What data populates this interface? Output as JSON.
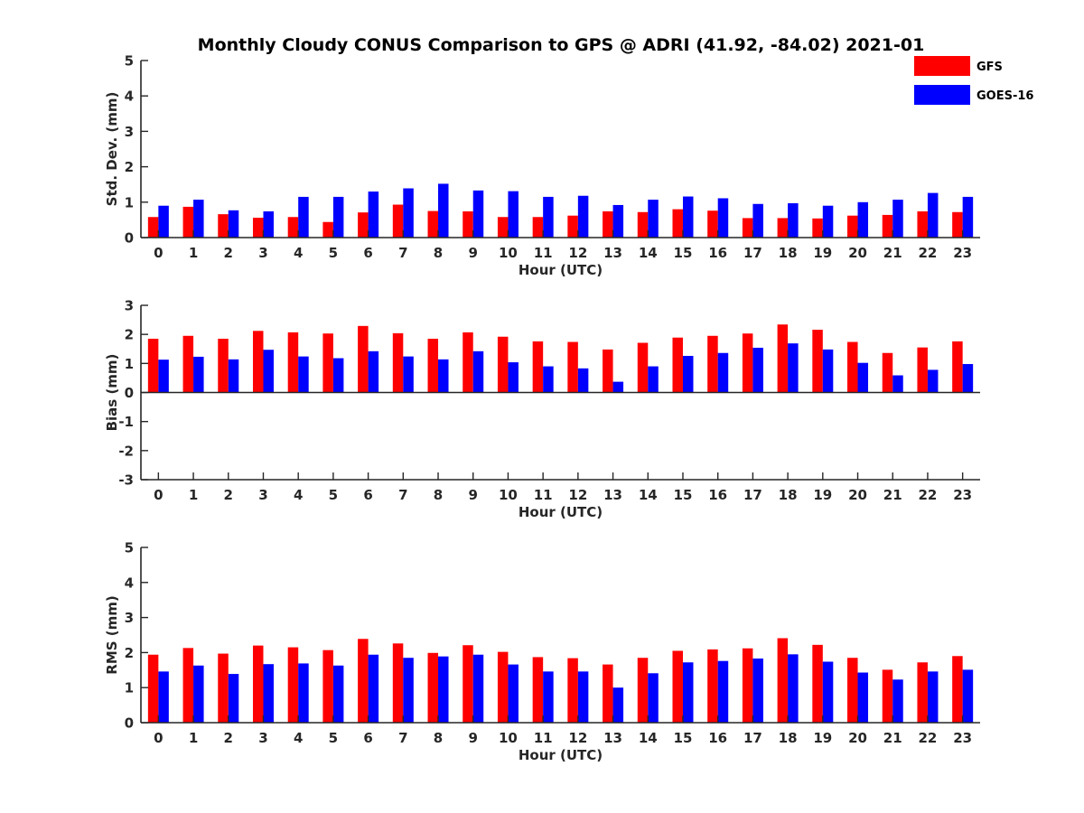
{
  "title": "Monthly Cloudy CONUS Comparison to GPS @ ADRI (41.92, -84.02) 2021-01",
  "legend": {
    "placement": "top-right",
    "entries": [
      {
        "name": "GFS",
        "color": "#ff0000"
      },
      {
        "name": "GOES-16",
        "color": "#0000ff"
      }
    ]
  },
  "chart_data": [
    {
      "type": "bar",
      "xlabel": "Hour (UTC)",
      "ylabel": "Std. Dev. (mm)",
      "ylim": [
        0,
        5
      ],
      "yticks": [
        0,
        1,
        2,
        3,
        4,
        5
      ],
      "categories": [
        "0",
        "1",
        "2",
        "3",
        "4",
        "5",
        "6",
        "7",
        "8",
        "9",
        "10",
        "11",
        "12",
        "13",
        "14",
        "15",
        "16",
        "17",
        "18",
        "19",
        "20",
        "21",
        "22",
        "23"
      ],
      "series": [
        {
          "name": "GFS",
          "color": "#ff0000",
          "values": [
            0.58,
            0.87,
            0.66,
            0.56,
            0.58,
            0.44,
            0.71,
            0.93,
            0.75,
            0.74,
            0.58,
            0.58,
            0.62,
            0.74,
            0.72,
            0.8,
            0.76,
            0.55,
            0.55,
            0.54,
            0.62,
            0.64,
            0.74,
            0.72
          ]
        },
        {
          "name": "GOES-16",
          "color": "#0000ff",
          "values": [
            0.9,
            1.07,
            0.77,
            0.74,
            1.15,
            1.15,
            1.3,
            1.39,
            1.52,
            1.33,
            1.31,
            1.15,
            1.18,
            0.92,
            1.07,
            1.16,
            1.11,
            0.95,
            0.97,
            0.9,
            1.0,
            1.07,
            1.26,
            1.15
          ]
        }
      ]
    },
    {
      "type": "bar",
      "xlabel": "Hour (UTC)",
      "ylabel": "Bias (mm)",
      "ylim": [
        -3,
        3
      ],
      "yticks": [
        -3,
        -2,
        -1,
        0,
        1,
        2,
        3
      ],
      "categories": [
        "0",
        "1",
        "2",
        "3",
        "4",
        "5",
        "6",
        "7",
        "8",
        "9",
        "10",
        "11",
        "12",
        "13",
        "14",
        "15",
        "16",
        "17",
        "18",
        "19",
        "20",
        "21",
        "22",
        "23"
      ],
      "series": [
        {
          "name": "GFS",
          "color": "#ff0000",
          "values": [
            1.85,
            1.95,
            1.85,
            2.12,
            2.07,
            2.03,
            2.29,
            2.04,
            1.85,
            2.07,
            1.92,
            1.76,
            1.74,
            1.48,
            1.71,
            1.89,
            1.95,
            2.03,
            2.34,
            2.16,
            1.74,
            1.36,
            1.55,
            1.76
          ]
        },
        {
          "name": "GOES-16",
          "color": "#0000ff",
          "values": [
            1.13,
            1.23,
            1.14,
            1.47,
            1.24,
            1.18,
            1.42,
            1.24,
            1.14,
            1.42,
            1.04,
            0.9,
            0.83,
            0.37,
            0.9,
            1.26,
            1.36,
            1.54,
            1.69,
            1.48,
            1.02,
            0.59,
            0.78,
            0.98
          ]
        }
      ]
    },
    {
      "type": "bar",
      "xlabel": "Hour (UTC)",
      "ylabel": "RMS (mm)",
      "ylim": [
        0,
        5
      ],
      "yticks": [
        0,
        1,
        2,
        3,
        4,
        5
      ],
      "categories": [
        "0",
        "1",
        "2",
        "3",
        "4",
        "5",
        "6",
        "7",
        "8",
        "9",
        "10",
        "11",
        "12",
        "13",
        "14",
        "15",
        "16",
        "17",
        "18",
        "19",
        "20",
        "21",
        "22",
        "23"
      ],
      "series": [
        {
          "name": "GFS",
          "color": "#ff0000",
          "values": [
            1.94,
            2.13,
            1.97,
            2.2,
            2.15,
            2.07,
            2.39,
            2.26,
            1.99,
            2.21,
            2.02,
            1.87,
            1.84,
            1.66,
            1.85,
            2.05,
            2.09,
            2.12,
            2.41,
            2.22,
            1.85,
            1.51,
            1.72,
            1.9
          ]
        },
        {
          "name": "GOES-16",
          "color": "#0000ff",
          "values": [
            1.46,
            1.63,
            1.39,
            1.67,
            1.69,
            1.63,
            1.94,
            1.85,
            1.89,
            1.94,
            1.66,
            1.46,
            1.46,
            1.0,
            1.41,
            1.72,
            1.76,
            1.83,
            1.95,
            1.74,
            1.43,
            1.23,
            1.46,
            1.51
          ]
        }
      ]
    }
  ]
}
